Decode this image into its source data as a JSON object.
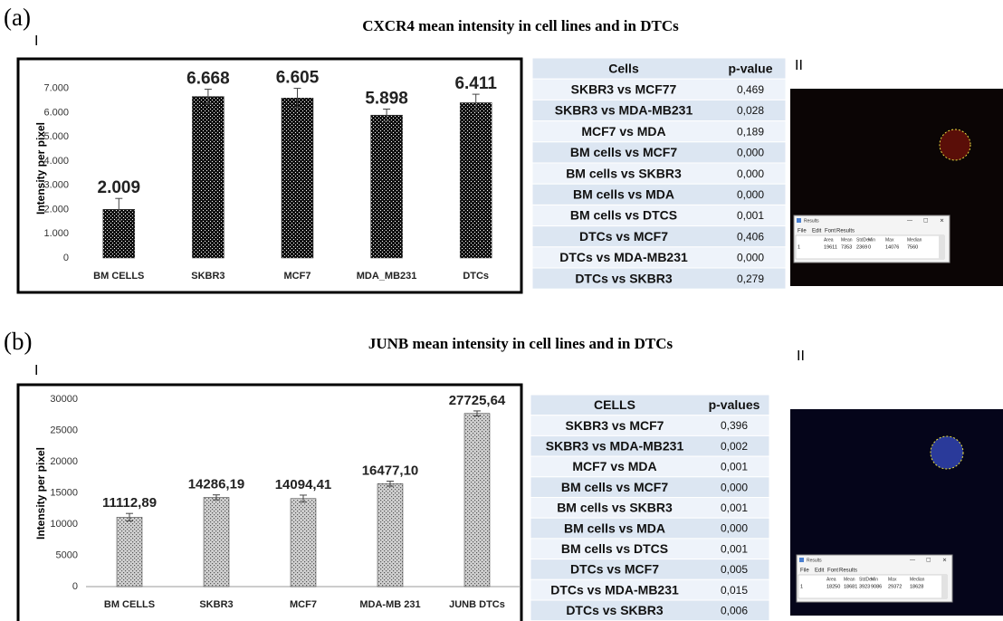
{
  "chart_data": [
    {
      "type": "bar",
      "title": "CXCR4 mean intensity in cell lines and in DTCs",
      "y_label": "Intensity per pixel",
      "categories": [
        "BM CELLS",
        "SKBR3",
        "MCF7",
        "MDA_MB231",
        "DTCs"
      ],
      "values": [
        2.009,
        6.668,
        6.605,
        5.898,
        6.411
      ],
      "errors": [
        0.45,
        0.3,
        0.4,
        0.25,
        0.35
      ],
      "color": "#111111",
      "ylim": [
        0,
        7.4
      ],
      "yticks": [
        0,
        {
          "value": 1,
          "label": "1.000"
        },
        {
          "value": 2,
          "label": "2.000"
        },
        {
          "value": 3,
          "label": "3.000"
        },
        {
          "value": 4,
          "label": "4.000"
        },
        {
          "value": 5,
          "label": "5.000"
        },
        {
          "value": 6,
          "label": "6.000"
        },
        {
          "value": 7,
          "label": "7.000"
        }
      ],
      "grid": false
    },
    {
      "type": "bar",
      "title": "JUNB mean intensity in cell lines and in DTCs",
      "y_label": "Intensity per pixel",
      "categories": [
        "BM CELLS",
        "SKBR3",
        "MCF7",
        "MDA-MB 231",
        "JUNB DTCs"
      ],
      "values": [
        11112.89,
        14286.19,
        14094.41,
        16477.1,
        27725.64
      ],
      "value_labels": [
        "11112,89",
        "14286,19",
        "14094,41",
        "16477,10",
        "27725,64"
      ],
      "errors": [
        600,
        400,
        550,
        400,
        400
      ],
      "color": "#d0d0d0",
      "ylim": [
        0,
        30000
      ],
      "yticks": [
        0,
        5000,
        10000,
        15000,
        20000,
        25000,
        30000
      ],
      "grid": false
    }
  ],
  "panels": [
    {
      "label": "(a)",
      "part_left": "I",
      "part_right": "II",
      "table": {
        "header": [
          "Cells",
          "p-value"
        ],
        "rows": [
          [
            "SKBR3 vs MCF77",
            "0,469"
          ],
          [
            "SKBR3 vs MDA-MB231",
            "0,028"
          ],
          [
            "MCF7 vs MDA",
            "0,189"
          ],
          [
            "BM cells vs MCF7",
            "0,000"
          ],
          [
            "BM cells vs SKBR3",
            "0,000"
          ],
          [
            "BM cells vs MDA",
            "0,000"
          ],
          [
            "BM cells vs DTCS",
            "0,001"
          ],
          [
            "DTCs vs MCF7",
            "0,406"
          ],
          [
            "DTCs vs MDA-MB231",
            "0,000"
          ],
          [
            "DTCs vs SKBR3",
            "0,279"
          ]
        ]
      },
      "results": {
        "title": "Results",
        "menu": [
          "File",
          "Edit",
          "Font",
          "Results"
        ],
        "columns": [
          "Area",
          "Mean",
          "StdDev",
          "Min",
          "Max",
          "Median"
        ],
        "row": [
          "1",
          "19611",
          "7353",
          "2369",
          "0",
          "14076",
          "7560"
        ]
      }
    },
    {
      "label": "(b)",
      "part_left": "I",
      "part_right": "II",
      "table": {
        "header": [
          "CELLS",
          "p-values"
        ],
        "rows": [
          [
            "SKBR3 vs MCF7",
            "0,396"
          ],
          [
            "SKBR3 vs MDA-MB231",
            "0,002"
          ],
          [
            "MCF7 vs MDA",
            "0,001"
          ],
          [
            "BM cells vs MCF7",
            "0,000"
          ],
          [
            "BM cells vs SKBR3",
            "0,001"
          ],
          [
            "BM cells vs MDA",
            "0,000"
          ],
          [
            "BM cells vs DTCS",
            "0,001"
          ],
          [
            "DTCs vs MCF7",
            "0,005"
          ],
          [
            "DTCs vs MDA-MB231",
            "0,015"
          ],
          [
            "DTCs vs SKBR3",
            "0,006"
          ]
        ]
      },
      "results": {
        "title": "Results",
        "menu": [
          "File",
          "Edit",
          "Font",
          "Results"
        ],
        "columns": [
          "Area",
          "Mean",
          "StdDev",
          "Min",
          "Max",
          "Median"
        ],
        "row": [
          "1",
          "18250",
          "18681",
          "3923",
          "9086",
          "29372",
          "18628"
        ]
      }
    }
  ]
}
